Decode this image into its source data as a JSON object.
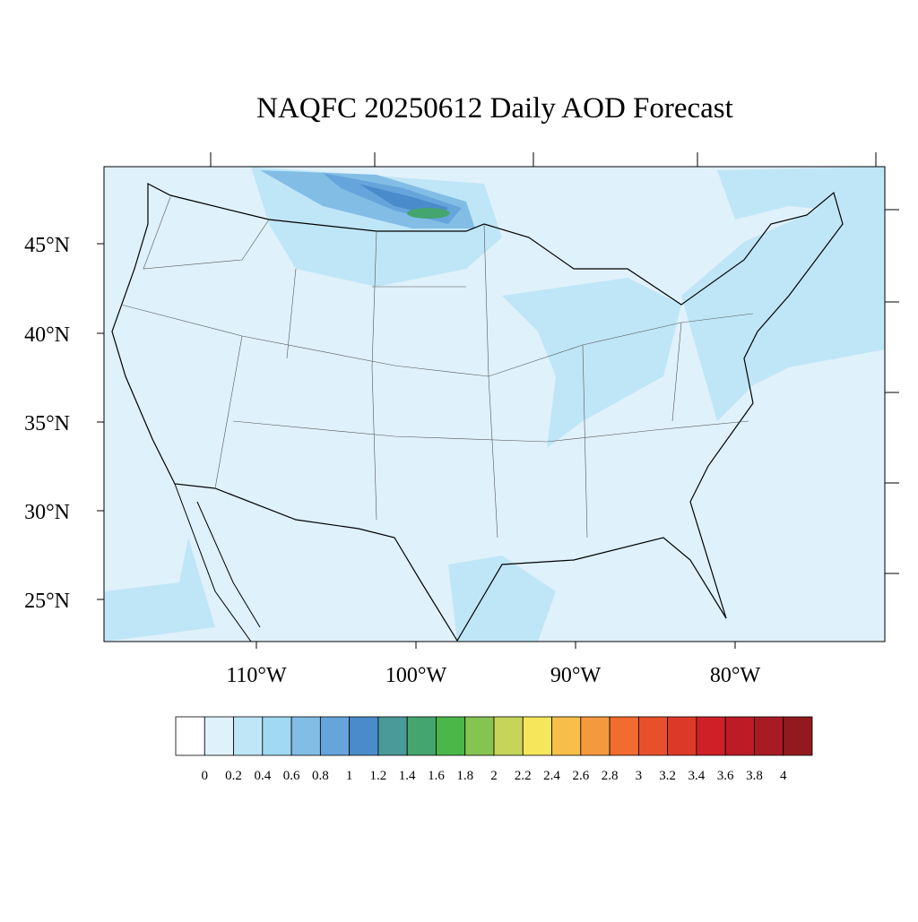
{
  "title": "NAQFC 20250612 Daily AOD Forecast",
  "map": {
    "lat_labels": [
      "45°N",
      "40°N",
      "35°N",
      "30°N",
      "25°N"
    ],
    "lon_labels": [
      "110°W",
      "100°W",
      "90°W",
      "80°W"
    ]
  },
  "colorbar": {
    "colors": [
      "#ffffff",
      "#dff1fb",
      "#bfe6f7",
      "#a1d8f3",
      "#82bde6",
      "#66a5db",
      "#4a8ccb",
      "#4a9a9a",
      "#45a56e",
      "#4bb749",
      "#86c451",
      "#c6d55a",
      "#f6e65c",
      "#f7be4a",
      "#f5993e",
      "#f26c2f",
      "#e8502c",
      "#dd3928",
      "#cf2027",
      "#bd1c26",
      "#a91b24",
      "#921a1e"
    ],
    "ticks": [
      0,
      0.2,
      0.4,
      0.6,
      0.8,
      1,
      1.2,
      1.4,
      1.6,
      1.8,
      2,
      2.2,
      2.4,
      2.6,
      2.8,
      3,
      3.2,
      3.4,
      3.6,
      3.8,
      4
    ]
  }
}
